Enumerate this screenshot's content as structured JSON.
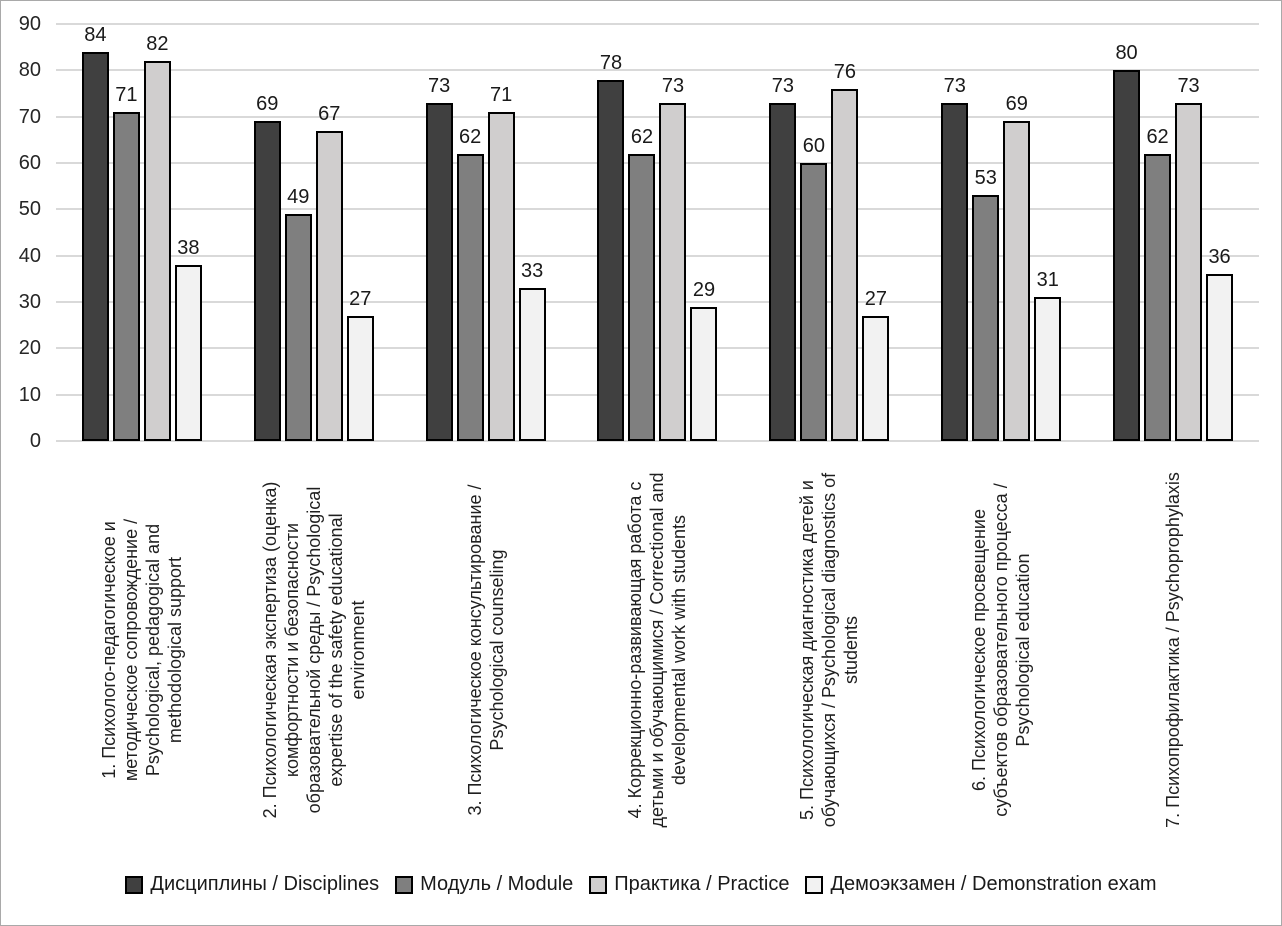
{
  "chart_data": {
    "type": "bar",
    "title": "",
    "xlabel": "",
    "ylabel": "",
    "grid": true,
    "legend_position": "bottom",
    "y_axis": {
      "min": 0,
      "max": 90,
      "step": 10,
      "ticks": [
        0,
        10,
        20,
        30,
        40,
        50,
        60,
        70,
        80,
        90
      ]
    },
    "categories": [
      "1. Психолого-педагогическое и методическое сопровождение / Psychological, pedagogical and methodological support",
      "2. Психологическая экспертиза (оценка) комфортности и безопасности образовательной среды / Psychological expertise of the safety educational environment",
      "3. Психологическое консультирование / Psychological counseling",
      "4. Коррекционно-развивающая работа с детьми и обучающимися / Correctional and developmental work with students",
      "5. Психологическая диагностика детей и обучающихся / Psychological diagnostics of students",
      "6. Психологическое просвещение субъектов образовательного процесса / Psychological education",
      "7. Психопрофилактика / Psychoprophylaxis"
    ],
    "categories_lines": [
      [
        "1. Психолого-педагогическое и",
        "методическое сопровождение /",
        "Psychological, pedagogical and",
        "methodological support"
      ],
      [
        "2. Психологическая экспертиза (оценка)",
        "комфортности и безопасности",
        "образовательной среды / Psychological",
        "expertise of the safety educational",
        "environment"
      ],
      [
        "3. Психологическое консультирование /",
        "Psychological counseling"
      ],
      [
        "4. Коррекционно-развивающая работа с",
        "детьми и обучающимися / Correctional and",
        "developmental work with students"
      ],
      [
        "5. Психологическая диагностика детей и",
        "обучающихся / Psychological diagnostics of",
        "students"
      ],
      [
        "6. Психологическое просвещение",
        "субъектов образовательного процесса /",
        "Psychological education"
      ],
      [
        "7. Психопрофилактика / Psychoprophylaxis"
      ]
    ],
    "series": [
      {
        "name": "Дисциплины / Disciplines",
        "color": "#404040",
        "values": [
          84,
          69,
          73,
          78,
          73,
          73,
          80
        ]
      },
      {
        "name": "Модуль / Module",
        "color": "#7f7f7f",
        "values": [
          71,
          49,
          62,
          62,
          60,
          53,
          62
        ]
      },
      {
        "name": "Практика / Practice",
        "color": "#d0cece",
        "values": [
          82,
          67,
          71,
          73,
          76,
          69,
          73
        ]
      },
      {
        "name": "Демоэкзамен / Demonstration exam",
        "color": "#f2f2f2",
        "values": [
          38,
          27,
          33,
          29,
          27,
          31,
          36
        ]
      }
    ]
  },
  "colors": {
    "gridline": "#d9d9d9",
    "bar_border": "#000000",
    "text": "#1f1f1f",
    "frame_border": "#a9a9a9"
  }
}
